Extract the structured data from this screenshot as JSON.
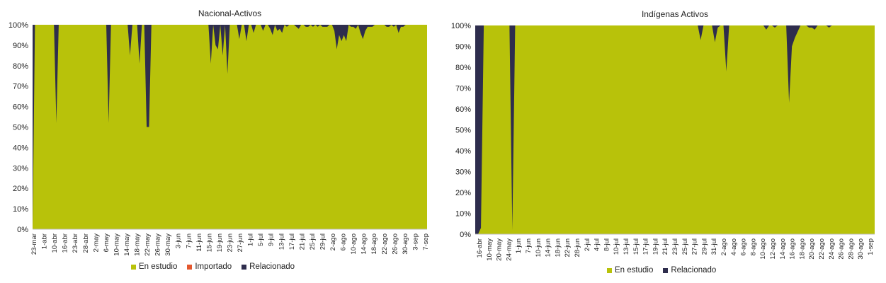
{
  "colors": {
    "en_estudio": "#b8c20a",
    "importado": "#e4572e",
    "relacionado": "#2e2d4d",
    "axis": "#bfbfbf",
    "text": "#222222"
  },
  "chart_data": [
    {
      "type": "area",
      "stacked": "percent",
      "title": "Nacional-Activos",
      "yticks": [
        "0%",
        "10%",
        "20%",
        "30%",
        "40%",
        "50%",
        "60%",
        "70%",
        "80%",
        "90%",
        "100%"
      ],
      "xticks": [
        "23-mar",
        "1-abr",
        "10-abr",
        "16-abr",
        "23-abr",
        "28-abr",
        "2-may",
        "6-may",
        "10-may",
        "14-may",
        "18-may",
        "22-may",
        "26-may",
        "30-may",
        "3-jun",
        "7-jun",
        "11-jun",
        "15-jun",
        "19-jun",
        "23-jun",
        "27-jun",
        "1-jul",
        "5-jul",
        "9-jul",
        "13-jul",
        "17-jul",
        "21-jul",
        "25-jul",
        "29-jul",
        "2-ago",
        "6-ago",
        "10-ago",
        "14-ago",
        "18-ago",
        "22-ago",
        "26-ago",
        "30-ago",
        "3-sep",
        "7-sep"
      ],
      "legend": [
        "En estudio",
        "Importado",
        "Relacionado"
      ],
      "series": [
        {
          "name": "En estudio",
          "values": [
            0,
            100,
            100,
            100,
            100,
            100,
            100,
            100,
            100,
            100,
            52,
            100,
            100,
            100,
            100,
            100,
            100,
            100,
            100,
            100,
            100,
            100,
            100,
            100,
            100,
            100,
            100,
            100,
            100,
            100,
            100,
            100,
            52,
            100,
            100,
            100,
            100,
            100,
            100,
            100,
            100,
            85,
            100,
            100,
            100,
            81,
            100,
            100,
            50,
            50,
            100,
            100,
            100,
            100,
            100,
            100,
            100,
            100,
            100,
            100,
            100,
            100,
            100,
            100,
            100,
            100,
            100,
            100,
            100,
            100,
            100,
            100,
            100,
            100,
            100,
            81,
            100,
            90,
            88,
            100,
            85,
            100,
            76,
            100,
            100,
            100,
            100,
            93,
            100,
            100,
            92,
            100,
            100,
            96,
            100,
            100,
            100,
            97,
            100,
            100,
            98,
            95,
            100,
            97,
            98,
            96,
            100,
            99,
            100,
            100,
            100,
            99,
            98,
            100,
            100,
            99,
            99,
            100,
            99,
            100,
            99,
            100,
            99,
            99,
            99,
            100,
            100,
            97,
            88,
            95,
            92,
            95,
            92,
            100,
            99,
            99,
            98,
            100,
            96,
            93,
            97,
            99,
            99,
            99,
            100,
            100,
            100,
            100,
            100,
            99,
            99,
            100,
            99,
            100,
            96,
            99,
            99,
            100,
            100,
            100,
            100,
            100,
            100,
            100,
            100,
            100,
            100
          ]
        },
        {
          "name": "Importado",
          "values": []
        },
        {
          "name": "Relacionado",
          "values": [
            100,
            0,
            0,
            0,
            0,
            0,
            0,
            0,
            0,
            0,
            48,
            0,
            0,
            0,
            0,
            0,
            0,
            0,
            0,
            0,
            0,
            0,
            0,
            0,
            0,
            0,
            0,
            0,
            0,
            0,
            0,
            0,
            48,
            0,
            0,
            0,
            0,
            0,
            0,
            0,
            0,
            15,
            0,
            0,
            0,
            19,
            0,
            0,
            50,
            50,
            0,
            0,
            0,
            0,
            0,
            0,
            0,
            0,
            0,
            0,
            0,
            0,
            0,
            0,
            0,
            0,
            0,
            0,
            0,
            0,
            0,
            0,
            0,
            0,
            0,
            19,
            0,
            10,
            12,
            0,
            15,
            0,
            24,
            0,
            0,
            0,
            0,
            7,
            0,
            0,
            8,
            0,
            0,
            4,
            0,
            0,
            0,
            3,
            0,
            0,
            2,
            5,
            0,
            3,
            2,
            4,
            0,
            1,
            0,
            0,
            0,
            1,
            2,
            0,
            0,
            1,
            1,
            0,
            1,
            0,
            1,
            0,
            1,
            1,
            1,
            0,
            0,
            3,
            12,
            5,
            8,
            5,
            8,
            0,
            1,
            1,
            2,
            0,
            4,
            7,
            3,
            1,
            1,
            1,
            0,
            0,
            0,
            0,
            0,
            1,
            1,
            0,
            1,
            0,
            4,
            1,
            1,
            0,
            0,
            0,
            0,
            0,
            0,
            0,
            0,
            0,
            0
          ]
        }
      ]
    },
    {
      "type": "area",
      "stacked": "percent",
      "title": "Indígenas Activos",
      "yticks": [
        "0%",
        "10%",
        "20%",
        "30%",
        "40%",
        "50%",
        "60%",
        "70%",
        "80%",
        "90%",
        "100%"
      ],
      "xticks": [
        "16-abr",
        "10-may",
        "20-may",
        "24-may",
        "1-jun",
        "7-jun",
        "10-jun",
        "14-jun",
        "18-jun",
        "22-jun",
        "28-jun",
        "2-jul",
        "4-jul",
        "8-jul",
        "10-jul",
        "13-jul",
        "15-jul",
        "17-jul",
        "19-jul",
        "21-jul",
        "23-jul",
        "25-jul",
        "27-jul",
        "29-jul",
        "31-jul",
        "2-ago",
        "4-ago",
        "6-ago",
        "8-ago",
        "10-ago",
        "12-ago",
        "14-ago",
        "16-ago",
        "18-ago",
        "20-ago",
        "22-ago",
        "24-ago",
        "26-ago",
        "28-ago",
        "30-ago",
        "1-sep"
      ],
      "legend": [
        "En estudio",
        "Relacionado"
      ],
      "series": [
        {
          "name": "En estudio",
          "values": [
            0,
            0,
            3,
            100,
            100,
            100,
            100,
            100,
            100,
            100,
            100,
            100,
            100,
            2,
            100,
            100,
            100,
            100,
            100,
            100,
            100,
            100,
            100,
            100,
            100,
            100,
            100,
            100,
            100,
            100,
            100,
            100,
            100,
            100,
            100,
            100,
            100,
            100,
            100,
            100,
            100,
            100,
            100,
            100,
            100,
            100,
            100,
            100,
            100,
            100,
            100,
            100,
            100,
            100,
            100,
            100,
            100,
            100,
            100,
            100,
            100,
            100,
            100,
            100,
            100,
            100,
            100,
            100,
            100,
            100,
            100,
            100,
            100,
            100,
            100,
            100,
            100,
            100,
            100,
            93,
            100,
            100,
            100,
            100,
            92,
            99,
            100,
            100,
            78,
            100,
            100,
            100,
            100,
            100,
            100,
            100,
            100,
            100,
            100,
            100,
            100,
            100,
            98,
            100,
            100,
            99,
            100,
            100,
            100,
            100,
            63,
            90,
            94,
            97,
            100,
            100,
            100,
            99,
            99,
            98,
            100,
            100,
            100,
            100,
            99,
            100,
            100,
            100,
            100,
            100,
            100,
            100,
            100,
            100,
            100,
            100,
            100,
            100,
            100,
            100,
            100
          ]
        },
        {
          "name": "Relacionado",
          "values": [
            100,
            100,
            97,
            0,
            0,
            0,
            0,
            0,
            0,
            0,
            0,
            0,
            0,
            98,
            0,
            0,
            0,
            0,
            0,
            0,
            0,
            0,
            0,
            0,
            0,
            0,
            0,
            0,
            0,
            0,
            0,
            0,
            0,
            0,
            0,
            0,
            0,
            0,
            0,
            0,
            0,
            0,
            0,
            0,
            0,
            0,
            0,
            0,
            0,
            0,
            0,
            0,
            0,
            0,
            0,
            0,
            0,
            0,
            0,
            0,
            0,
            0,
            0,
            0,
            0,
            0,
            0,
            0,
            0,
            0,
            0,
            0,
            0,
            0,
            0,
            0,
            0,
            0,
            0,
            7,
            0,
            0,
            0,
            0,
            8,
            1,
            0,
            0,
            22,
            0,
            0,
            0,
            0,
            0,
            0,
            0,
            0,
            0,
            0,
            0,
            0,
            0,
            2,
            0,
            0,
            1,
            0,
            0,
            0,
            0,
            37,
            10,
            6,
            3,
            0,
            0,
            0,
            1,
            1,
            2,
            0,
            0,
            0,
            0,
            1,
            0,
            0,
            0,
            0,
            0,
            0,
            0,
            0,
            0,
            0,
            0,
            0,
            0,
            0,
            0,
            0
          ]
        }
      ]
    }
  ]
}
